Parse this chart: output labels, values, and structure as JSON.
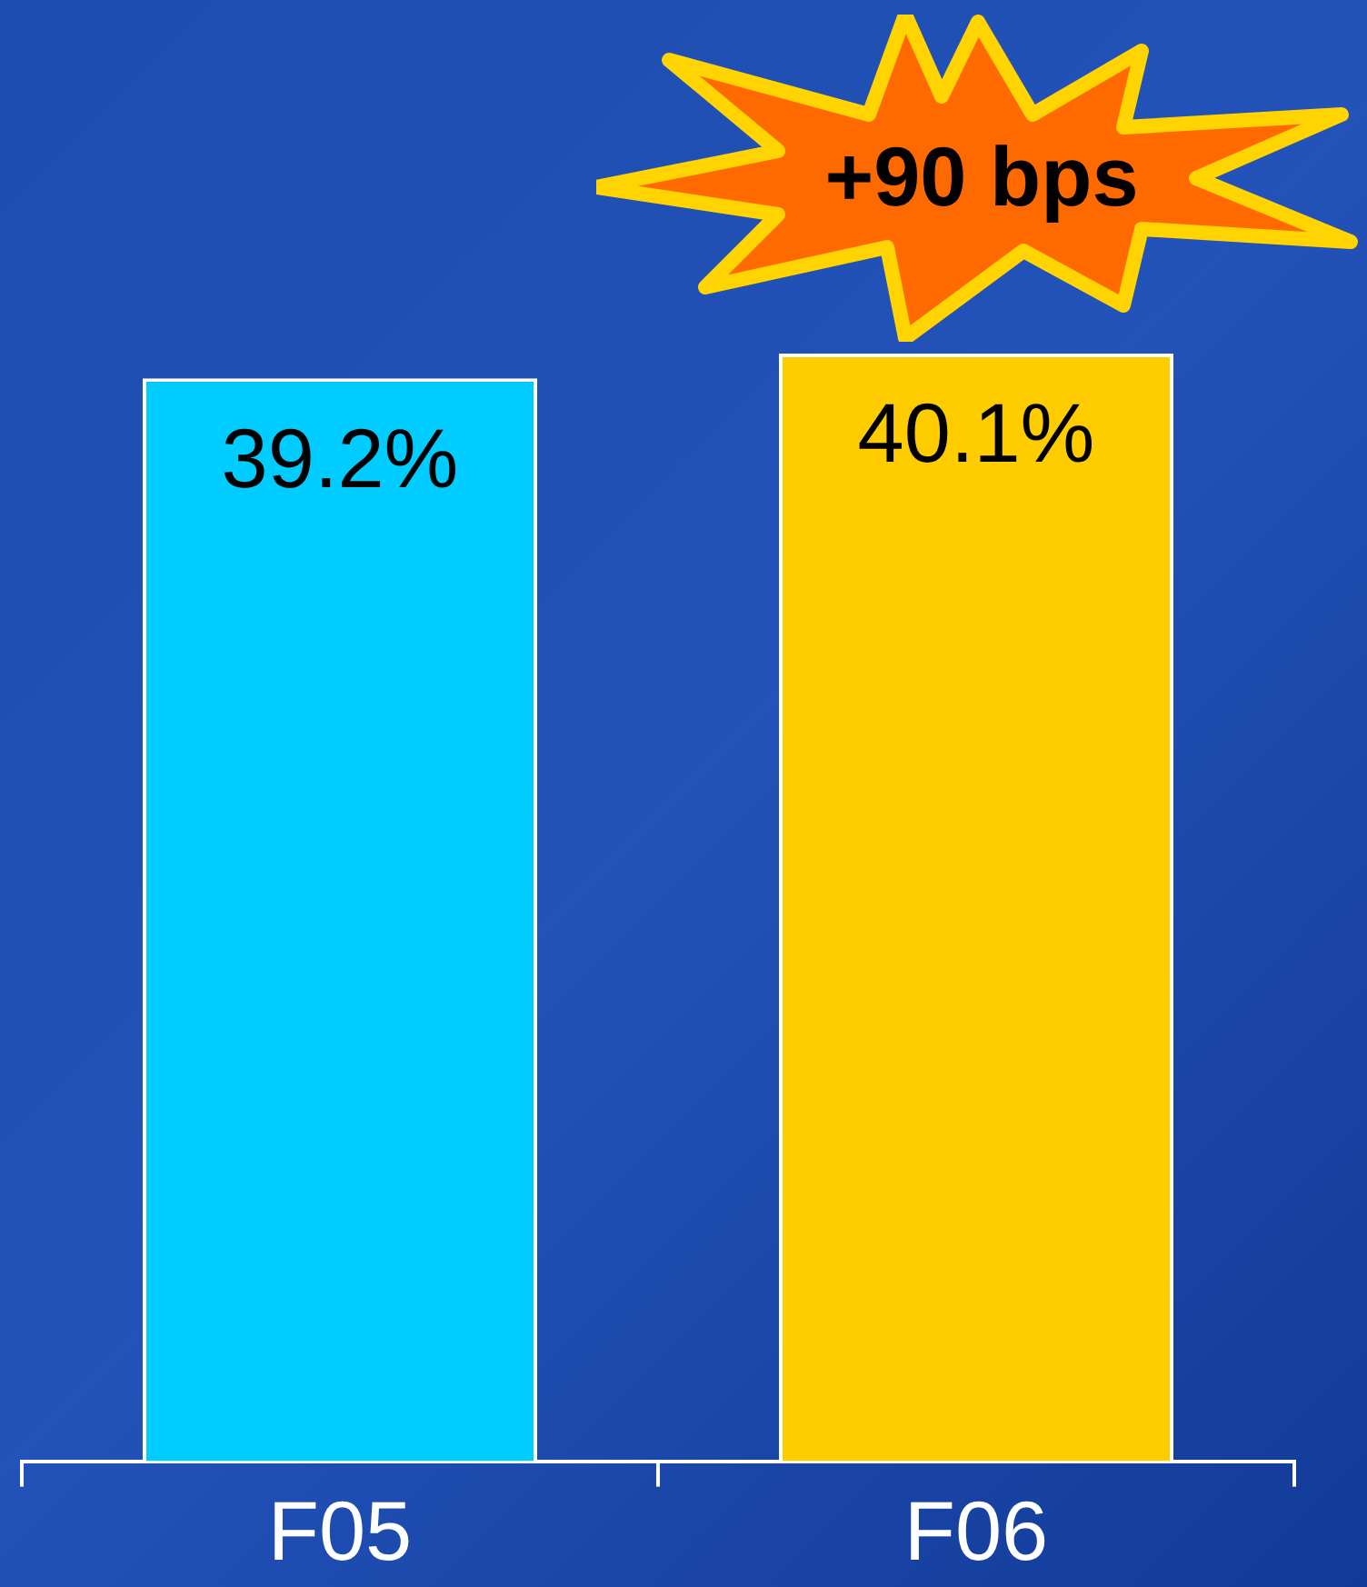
{
  "chart_data": {
    "type": "bar",
    "categories": [
      "F05",
      "F06"
    ],
    "values": [
      39.2,
      40.1
    ],
    "colors": [
      "#00ccff",
      "#ffcc00"
    ],
    "value_labels": [
      "39.2%",
      "40.1%"
    ],
    "annotations": [
      "+90 bps"
    ]
  }
}
